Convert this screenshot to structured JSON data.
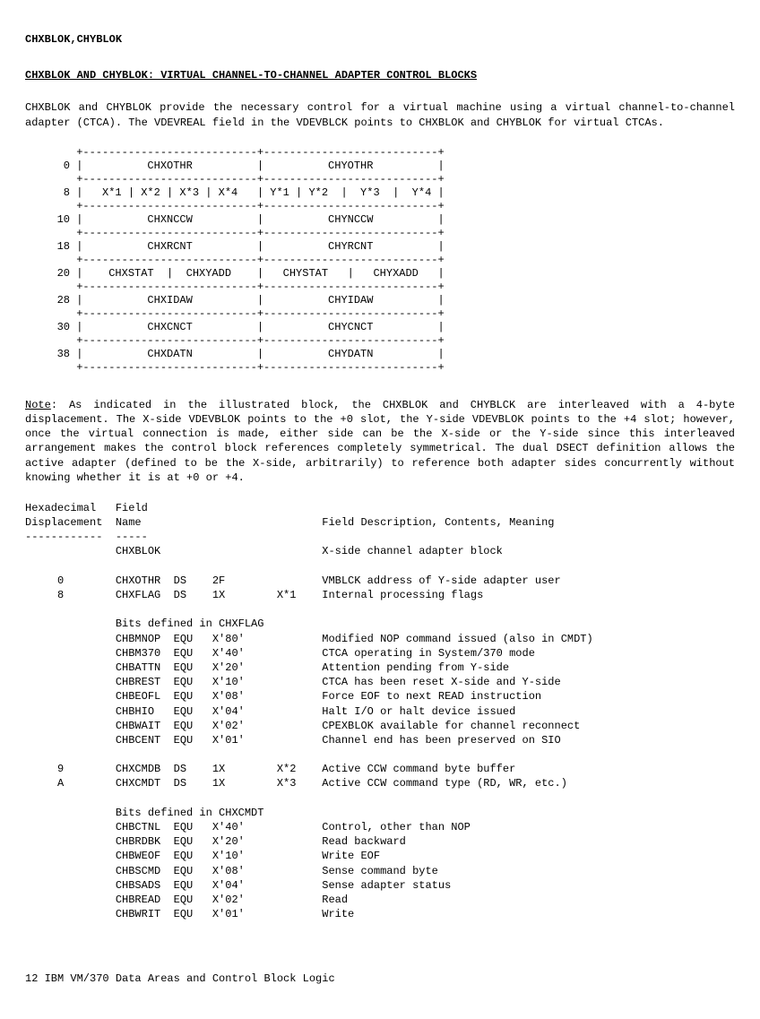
{
  "header": "CHXBLOK,CHYBLOK",
  "title": "CHXBLOK AND CHYBLOK: VIRTUAL CHANNEL-TO-CHANNEL ADAPTER CONTROL BLOCKS",
  "intro": "CHXBLOK and CHYBLOK provide  the necessary control for a virtual  machine using a virtual channel-to-channel adapter (CTCA).  The VDEVREAL field  in the VDEVBLCK points to CHXBLOK and CHYBLOK for virtual CTCAs.",
  "diagram": {
    "rows": [
      {
        "off": "0",
        "left": "CHXOTHR",
        "right": "CHYOTHR"
      },
      {
        "off": "8",
        "left": "X*1 | X*2 | X*3 | X*4",
        "right": "Y*1 | Y*2  |  Y*3  |  Y*4"
      },
      {
        "off": "10",
        "left": "CHXNCCW",
        "right": "CHYNCCW"
      },
      {
        "off": "18",
        "left": "CHXRCNT",
        "right": "CHYRCNT"
      },
      {
        "off": "20",
        "left": "CHXSTAT  |  CHXYADD",
        "right": "CHYSTAT   |   CHYXADD"
      },
      {
        "off": "28",
        "left": "CHXIDAW",
        "right": "CHYIDAW"
      },
      {
        "off": "30",
        "left": "CHXCNCT",
        "right": "CHYCNCT"
      },
      {
        "off": "38",
        "left": "CHXDATN",
        "right": "CHYDATN"
      }
    ]
  },
  "note_label": "Note",
  "note": ": As  indicated in the  illustrated block, the  CHXBLOK and CHYBLCK  are interleaved with  a 4-byte  displacement. The  X-side  VDEVBLOK  points  to  the +0  slot,  the  Y-side VDEVBLOK points to the +4 slot; however, once the virtual connection is made, either side can be  the X-side  or the Y-side  since this interleaved  arrangement makes  the control block references  completely symmetrical.  The dual  DSECT definition  allows the  active adapter  (defined to  be  the X-side,  arbitrarily)  to reference  both  adapter sides concurrently without knowing whether it is at +0 or +4.",
  "col_headers": {
    "hex": "Hexadecimal",
    "disp": "Displacement",
    "field": "Field",
    "name": "Name",
    "desc": "Field Description, Contents, Meaning"
  },
  "block_label": "CHXBLOK",
  "block_desc": "X-side channel adapter block",
  "fields": [
    {
      "disp": "0",
      "name": "CHXOTHR",
      "op": "DS",
      "val": "2F",
      "ref": "",
      "desc": "VMBLCK address of Y-side adapter user"
    },
    {
      "disp": "8",
      "name": "CHXFLAG",
      "op": "DS",
      "val": "1X",
      "ref": "X*1",
      "desc": "Internal processing flags"
    }
  ],
  "bits1_title": "Bits defined in CHXFLAG",
  "bits1": [
    {
      "name": "CHBMNOP",
      "op": "EQU",
      "val": "X'80'",
      "desc": "Modified NOP command issued (also in CMDT)"
    },
    {
      "name": "CHBM370",
      "op": "EQU",
      "val": "X'40'",
      "desc": "CTCA operating in System/370 mode"
    },
    {
      "name": "CHBATTN",
      "op": "EQU",
      "val": "X'20'",
      "desc": "Attention pending from Y-side"
    },
    {
      "name": "CHBREST",
      "op": "EQU",
      "val": "X'10'",
      "desc": "CTCA has been reset X-side and Y-side"
    },
    {
      "name": "CHBEOFL",
      "op": "EQU",
      "val": "X'08'",
      "desc": "Force EOF to next READ instruction"
    },
    {
      "name": "CHBHIO",
      "op": "EQU",
      "val": "X'04'",
      "desc": "Halt I/O or halt device issued"
    },
    {
      "name": "CHBWAIT",
      "op": "EQU",
      "val": "X'02'",
      "desc": "CPEXBLOK available for channel reconnect"
    },
    {
      "name": "CHBCENT",
      "op": "EQU",
      "val": "X'01'",
      "desc": "Channel end has been preserved on SIO"
    }
  ],
  "fields2": [
    {
      "disp": "9",
      "name": "CHXCMDB",
      "op": "DS",
      "val": "1X",
      "ref": "X*2",
      "desc": "Active CCW command byte buffer"
    },
    {
      "disp": "A",
      "name": "CHXCMDT",
      "op": "DS",
      "val": "1X",
      "ref": "X*3",
      "desc": "Active CCW command type (RD, WR, etc.)"
    }
  ],
  "bits2_title": "Bits defined in CHXCMDT",
  "bits2": [
    {
      "name": "CHBCTNL",
      "op": "EQU",
      "val": "X'40'",
      "desc": "Control, other than NOP"
    },
    {
      "name": "CHBRDBK",
      "op": "EQU",
      "val": "X'20'",
      "desc": "Read backward"
    },
    {
      "name": "CHBWEOF",
      "op": "EQU",
      "val": "X'10'",
      "desc": "Write EOF"
    },
    {
      "name": "CHBSCMD",
      "op": "EQU",
      "val": "X'08'",
      "desc": "Sense command byte"
    },
    {
      "name": "CHBSADS",
      "op": "EQU",
      "val": "X'04'",
      "desc": "Sense adapter status"
    },
    {
      "name": "CHBREAD",
      "op": "EQU",
      "val": "X'02'",
      "desc": "Read"
    },
    {
      "name": "CHBWRIT",
      "op": "EQU",
      "val": "X'01'",
      "desc": "Write"
    }
  ],
  "footer": "12   IBM VM/370 Data Areas and Control Block Logic"
}
